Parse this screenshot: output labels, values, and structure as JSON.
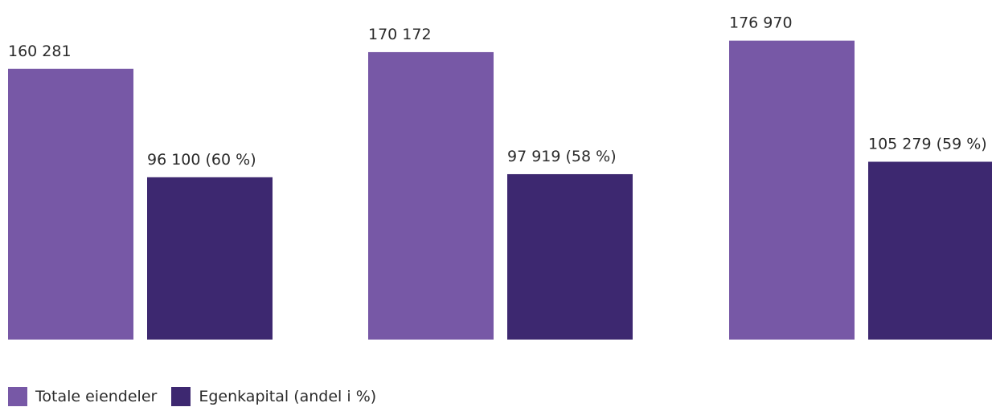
{
  "chart_data": {
    "type": "bar",
    "groups": 3,
    "ylim": [
      0,
      200000
    ],
    "series": [
      {
        "name": "Totale eiendeler",
        "color": "#7758a6",
        "values": [
          160281,
          170172,
          176970
        ],
        "labels": [
          "160 281",
          "170 172",
          "176 970"
        ]
      },
      {
        "name": "Egenkapital (andel i %)",
        "color": "#3d2870",
        "values": [
          96100,
          97919,
          105279
        ],
        "labels": [
          "96 100 (60 %)",
          "97 919 (58 %)",
          "105 279 (59 %)"
        ]
      }
    ],
    "legend_position": "bottom-left",
    "grid": false
  },
  "legend": {
    "items": [
      {
        "label": "Totale eiendeler",
        "color": "#7758a6"
      },
      {
        "label": "Egenkapital (andel i %)",
        "color": "#3d2870"
      }
    ]
  }
}
